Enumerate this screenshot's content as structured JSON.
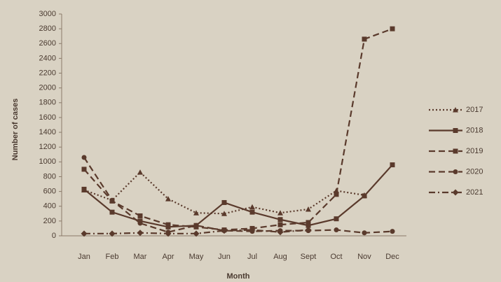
{
  "chart_data": {
    "type": "line",
    "x_label": "Month",
    "y_label": "Number of cases",
    "categories": [
      "Jan",
      "Feb",
      "Mar",
      "Apr",
      "May",
      "Jun",
      "Jul",
      "Aug",
      "Sept",
      "Oct",
      "Nov",
      "Dec"
    ],
    "series": [
      {
        "name": "2017",
        "color": "#5a3a2c",
        "dash": "dotted",
        "marker": "triangle",
        "values": [
          620,
          480,
          860,
          500,
          310,
          300,
          390,
          310,
          360,
          610,
          550,
          null
        ]
      },
      {
        "name": "2018",
        "color": "#5a3a2c",
        "dash": "solid",
        "marker": "square",
        "values": [
          630,
          320,
          200,
          120,
          140,
          450,
          320,
          220,
          140,
          230,
          540,
          960
        ]
      },
      {
        "name": "2019",
        "color": "#5a3a2c",
        "dash": "dashed",
        "marker": "square",
        "values": [
          900,
          470,
          270,
          150,
          120,
          80,
          100,
          150,
          180,
          560,
          2660,
          2800
        ]
      },
      {
        "name": "2020",
        "color": "#5a3a2c",
        "dash": "dashed",
        "marker": "circle",
        "values": [
          1060,
          480,
          170,
          50,
          140,
          70,
          60,
          70,
          70,
          80,
          40,
          60
        ]
      },
      {
        "name": "2021",
        "color": "#5a3a2c",
        "dash": "dashdot",
        "marker": "diamond",
        "values": [
          30,
          30,
          40,
          30,
          30,
          70,
          80,
          50,
          80,
          null,
          null,
          null
        ]
      }
    ],
    "ylim": [
      0,
      3000
    ],
    "yticks": [
      0,
      200,
      400,
      600,
      800,
      1000,
      1200,
      1400,
      1600,
      1800,
      2000,
      2200,
      2400,
      2600,
      2800,
      3000
    ],
    "grid": false,
    "legend": "right"
  }
}
